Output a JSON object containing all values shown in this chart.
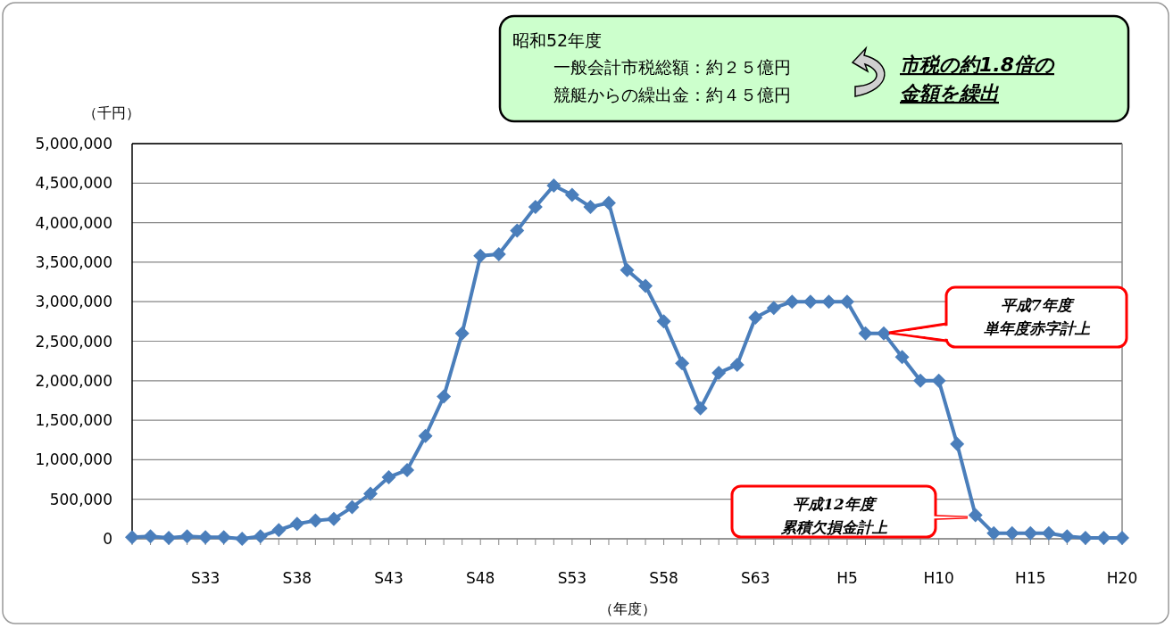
{
  "chart_data": {
    "type": "line",
    "categories": [
      null,
      null,
      null,
      null,
      "S33",
      null,
      null,
      null,
      null,
      "S38",
      null,
      null,
      null,
      null,
      "S43",
      null,
      null,
      null,
      null,
      "S48",
      null,
      null,
      null,
      null,
      "S53",
      null,
      null,
      null,
      null,
      "S58",
      null,
      null,
      null,
      null,
      "S63",
      null,
      null,
      null,
      null,
      "H5",
      null,
      null,
      null,
      null,
      "H10",
      null,
      null,
      null,
      null,
      "H15",
      null,
      null,
      null,
      null,
      "H20"
    ],
    "series": [
      {
        "color": "#4a7ebb",
        "values": [
          20000,
          30000,
          10000,
          30000,
          20000,
          20000,
          0,
          30000,
          110000,
          190000,
          230000,
          250000,
          400000,
          570000,
          780000,
          870000,
          1300000,
          1800000,
          2600000,
          3580000,
          3600000,
          3900000,
          4200000,
          4470000,
          4350000,
          4200000,
          4250000,
          3400000,
          3200000,
          2750000,
          2220000,
          1650000,
          2100000,
          2200000,
          2800000,
          2920000,
          3000000,
          3000000,
          3000000,
          3000000,
          2600000,
          2600000,
          2300000,
          2000000,
          2000000,
          1200000,
          300000,
          70000,
          70000,
          70000,
          70000,
          30000,
          10000,
          10000,
          10000
        ]
      }
    ],
    "ylim": [
      0,
      5000000
    ],
    "yticks": [
      0,
      {
        "value": 500000,
        "label": "500,000"
      },
      {
        "value": 1000000,
        "label": "1,000,000"
      },
      {
        "value": 1500000,
        "label": "1,500,000"
      },
      {
        "value": 2000000,
        "label": "2,000,000"
      },
      {
        "value": 2500000,
        "label": "2,500,000"
      },
      {
        "value": 3000000,
        "label": "3,000,000"
      },
      {
        "value": 3500000,
        "label": "3,500,000"
      },
      {
        "value": 4000000,
        "label": "4,000,000"
      },
      {
        "value": 4500000,
        "label": "4,500,000"
      },
      {
        "value": 5000000,
        "label": "5,000,000"
      }
    ],
    "ylabel": "（千円）",
    "xlabel": "（年度）",
    "grid": "y",
    "marker": "diamond",
    "line_style": "solid",
    "annotations": [
      "昭和52年度",
      "一般会計市税総額：約２５億円",
      "競艇からの繰出金：約４５億円",
      "市税の約1.8倍の",
      "金額を繰出",
      "平成7年度",
      "単年度赤字計上",
      "平成12年度",
      "累積欠損金計上"
    ]
  }
}
